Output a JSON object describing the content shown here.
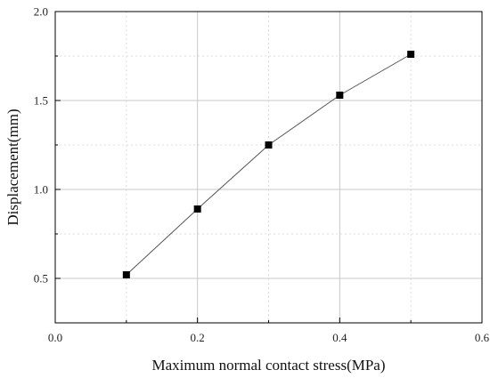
{
  "chart_data": {
    "type": "line",
    "title": "",
    "xlabel": "Maximum normal contact stress(MPa)",
    "ylabel": "Displacement(mm)",
    "xlim": [
      0.0,
      0.6
    ],
    "ylim": [
      0.25,
      2.0
    ],
    "x_ticks": [
      "0.0",
      "0.2",
      "0.4",
      "0.6"
    ],
    "y_ticks": [
      "0.5",
      "1.0",
      "1.5",
      "2.0"
    ],
    "grid": true,
    "series": [
      {
        "x": [
          0.1,
          0.2,
          0.3,
          0.4,
          0.5
        ],
        "values": [
          0.52,
          0.89,
          1.25,
          1.53,
          1.76
        ],
        "marker": "square",
        "color": "#000000",
        "line_color": "#555555"
      }
    ]
  }
}
